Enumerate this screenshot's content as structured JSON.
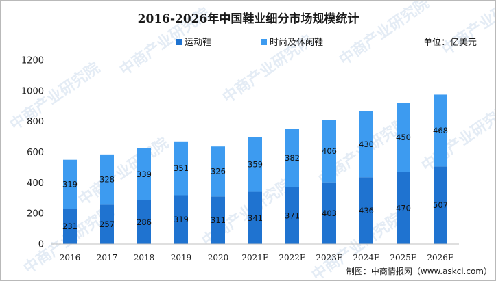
{
  "chart_data": {
    "type": "bar",
    "stacked": true,
    "title": "2016-2026年中国鞋业细分市场规模统计",
    "unit_label": "单位：亿美元",
    "source": "制图：中商情报网（www.askci.com）",
    "watermark": "中商产业研究院",
    "categories": [
      "2016",
      "2017",
      "2018",
      "2019",
      "2020",
      "2021E",
      "2022E",
      "2023E",
      "2024E",
      "2025E",
      "2026E"
    ],
    "series": [
      {
        "name": "运动鞋",
        "color": "#1f73d0",
        "values": [
          231,
          257,
          286,
          319,
          311,
          341,
          371,
          403,
          436,
          470,
          507
        ]
      },
      {
        "name": "时尚及休闲鞋",
        "color": "#3d9bf0",
        "values": [
          319,
          328,
          339,
          351,
          326,
          359,
          382,
          406,
          430,
          450,
          468
        ]
      }
    ],
    "ylim": [
      0,
      1200
    ],
    "yticks": [
      0,
      200,
      400,
      600,
      800,
      1000,
      1200
    ],
    "grid": false,
    "legend_position": "top-center"
  }
}
